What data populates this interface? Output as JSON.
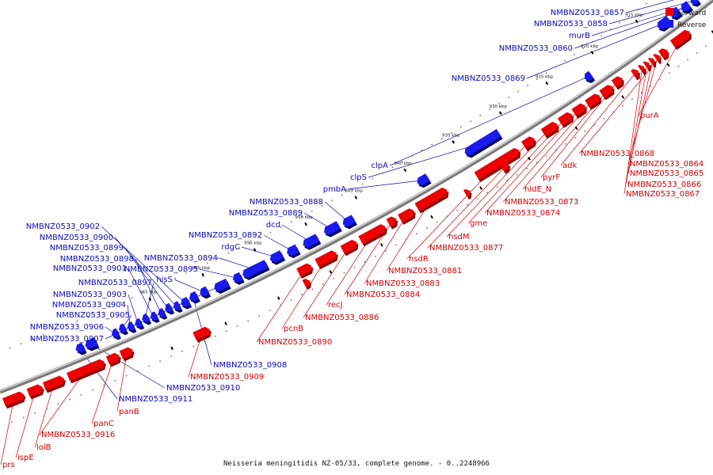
{
  "caption": "Neisseria meningitidis NZ-05/33, complete genome. - 0..2248966",
  "legend": {
    "forward_label": "Forward",
    "reverse_label": "Reverse",
    "forward_color": "#ee0000",
    "reverse_color": "#1a1aee"
  },
  "ticks": [
    "910 kbp",
    "915 kbp",
    "920 kbp",
    "925 kbp",
    "930 kbp",
    "935 kbp",
    "940 kbp",
    "945 kbp",
    "950 kbp",
    "955 kbp",
    "960 kbp",
    "965 kbp"
  ],
  "forward_genes": [
    "purA",
    "NMBNZ0533_0868",
    "NMBNZ0533_0864",
    "NMBNZ0533_0865",
    "NMBNZ0533_0866",
    "NMBNZ0533_0867",
    "adk",
    "pyrF",
    "hldE_N",
    "NMBNZ0533_0873",
    "NMBNZ0533_0874",
    "gme",
    "hsdM",
    "NMBNZ0533_0877",
    "hsdR",
    "NMBNZ0533_0881",
    "NMBNZ0533_0883",
    "NMBNZ0533_0884",
    "recJ",
    "NMBNZ0533_0886",
    "pcnB",
    "NMBNZ0533_0890",
    "NMBNZ0533_0909",
    "panB",
    "panC",
    "NMBNZ0533_0916",
    "lolB",
    "ispE",
    "prs"
  ],
  "reverse_genes": [
    "NMBNZ0533_0857",
    "NMBNZ0533_0858",
    "murB",
    "NMBNZ0533_0860",
    "NMBNZ0533_0869",
    "clpA",
    "clpS",
    "pmbA",
    "NMBNZ0533_0888",
    "NMBNZ0533_0889",
    "dcd",
    "NMBNZ0533_0892",
    "rdgC",
    "NMBNZ0533_0894",
    "NMBNZ0533_0895",
    "hisS",
    "NMBNZ0533_0902",
    "NMBNZ0533_0900",
    "NMBNZ0533_0899",
    "NMBNZ0533_0898",
    "NMBNZ0533_0901",
    "NMBNZ0533_0897",
    "NMBNZ0533_0903",
    "NMBNZ0533_0904",
    "NMBNZ0533_0905",
    "NMBNZ0533_0906",
    "NMBNZ0533_0907",
    "NMBNZ0533_0908",
    "NMBNZ0533_0910",
    "NMBNZ0533_0911"
  ]
}
